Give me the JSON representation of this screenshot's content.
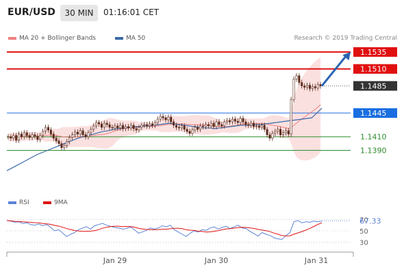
{
  "header": {
    "pair": "EUR/USD",
    "timeframe": "30 MIN",
    "time": "01:16:01 CET"
  },
  "legend": {
    "ma20_label": "MA 20 + Bollinger Bands",
    "ma50_label": "MA 50",
    "copyright": "Research © 2019 Trading Central"
  },
  "rsi_legend": {
    "rsi_label": "RSI",
    "ma_label": "9MA"
  },
  "colors": {
    "resistance": "#e01010",
    "price_tag": "#333333",
    "pivot": "#1a6ee0",
    "support": "#2e8b2e",
    "ma20": "#f08080",
    "ma50": "#3a6aa8",
    "bollinger_fill": "#fadadb",
    "rsi": "#5b83d6",
    "rsi_ma": "#e01010",
    "arrow": "#2a63b0",
    "candle": "#5a2a1a"
  },
  "chart_data": [
    {
      "type": "candlestick",
      "title": "EUR/USD 30 MIN",
      "ylim": [
        1.1335,
        1.1545
      ],
      "x_ticks": [
        "Jan 29",
        "Jan 30",
        "Jan 31"
      ],
      "levels": [
        {
          "value": 1.1535,
          "label": "1.1535",
          "kind": "resistance"
        },
        {
          "value": 1.151,
          "label": "1.1510",
          "kind": "resistance"
        },
        {
          "value": 1.1485,
          "label": "1.1485",
          "kind": "price"
        },
        {
          "value": 1.1445,
          "label": "1.1445",
          "kind": "pivot"
        },
        {
          "value": 1.141,
          "label": "1.1410",
          "kind": "support"
        },
        {
          "value": 1.139,
          "label": "1.1390",
          "kind": "support"
        }
      ],
      "arrow": {
        "from": 1.1485,
        "to": 1.1535,
        "direction": "up"
      },
      "price_close": [
        1.141,
        1.1408,
        1.1412,
        1.1405,
        1.1414,
        1.141,
        1.1416,
        1.1412,
        1.1409,
        1.1413,
        1.1411,
        1.1406,
        1.1412,
        1.1418,
        1.1424,
        1.142,
        1.1414,
        1.1408,
        1.1404,
        1.14,
        1.1394,
        1.1397,
        1.1403,
        1.1409,
        1.1413,
        1.1417,
        1.1414,
        1.1419,
        1.1413,
        1.141,
        1.1416,
        1.1421,
        1.1426,
        1.1431,
        1.1429,
        1.1424,
        1.143,
        1.1428,
        1.1424,
        1.1423,
        1.1426,
        1.1423,
        1.1427,
        1.1422,
        1.1425,
        1.1423,
        1.1427,
        1.1422,
        1.142,
        1.1424,
        1.1427,
        1.1428,
        1.1426,
        1.1429,
        1.1427,
        1.1431,
        1.1436,
        1.144,
        1.1438,
        1.1435,
        1.1439,
        1.1432,
        1.1427,
        1.1424,
        1.1423,
        1.1426,
        1.1421,
        1.1418,
        1.1415,
        1.142,
        1.1424,
        1.1421,
        1.1426,
        1.1425,
        1.1428,
        1.1426,
        1.143,
        1.1425,
        1.1432,
        1.1428,
        1.1426,
        1.1432,
        1.1434,
        1.1432,
        1.1436,
        1.1433,
        1.1431,
        1.1437,
        1.1432,
        1.1428,
        1.1427,
        1.143,
        1.1425,
        1.1426,
        1.1424,
        1.1427,
        1.1421,
        1.1413,
        1.1408,
        1.1415,
        1.1418,
        1.1421,
        1.1413,
        1.1416,
        1.1419,
        1.1414,
        1.1465,
        1.1495,
        1.15,
        1.149,
        1.1485,
        1.1483,
        1.1486,
        1.1481,
        1.1484,
        1.1482,
        1.1487,
        1.1485
      ],
      "ma50": [
        1.136,
        1.1364,
        1.1368,
        1.1372,
        1.1376,
        1.138,
        1.1384,
        1.1387,
        1.139,
        1.1393,
        1.1396,
        1.1399,
        1.1402,
        1.1405,
        1.1408,
        1.141,
        1.1412,
        1.1414,
        1.1416,
        1.1418,
        1.1419,
        1.1421,
        1.1422,
        1.1423,
        1.1424,
        1.1425,
        1.1425,
        1.1426,
        1.1426,
        1.1427,
        1.1428,
        1.1429,
        1.143,
        1.1429,
        1.1428,
        1.1427,
        1.1426,
        1.1425,
        1.1424,
        1.1423,
        1.1423,
        1.1422,
        1.1423,
        1.1424,
        1.1425,
        1.1426,
        1.1427,
        1.1427,
        1.1427,
        1.1428,
        1.1428,
        1.1429,
        1.143,
        1.1431,
        1.1432,
        1.1433,
        1.1434,
        1.1435,
        1.1436,
        1.1437,
        1.1438,
        1.1445,
        1.1452
      ],
      "rsi_ticks": [
        70,
        50,
        30
      ],
      "rsi_value": {
        "value": 67.33,
        "label": "67.33"
      },
      "rsi": [
        68,
        67,
        65,
        66,
        63,
        64,
        61,
        60,
        62,
        59,
        61,
        56,
        50,
        52,
        46,
        40,
        44,
        47,
        52,
        55,
        57,
        53,
        59,
        61,
        63,
        60,
        58,
        56,
        55,
        53,
        54,
        57,
        52,
        46,
        48,
        51,
        55,
        53,
        55,
        59,
        57,
        60,
        52,
        48,
        44,
        40,
        46,
        50,
        48,
        52,
        51,
        55,
        57,
        53,
        56,
        58,
        54,
        57,
        60,
        55,
        54,
        49,
        45,
        41,
        47,
        44,
        42,
        38,
        36,
        35,
        42,
        47,
        66,
        68,
        64,
        66,
        65,
        67,
        66,
        67
      ]
    }
  ]
}
